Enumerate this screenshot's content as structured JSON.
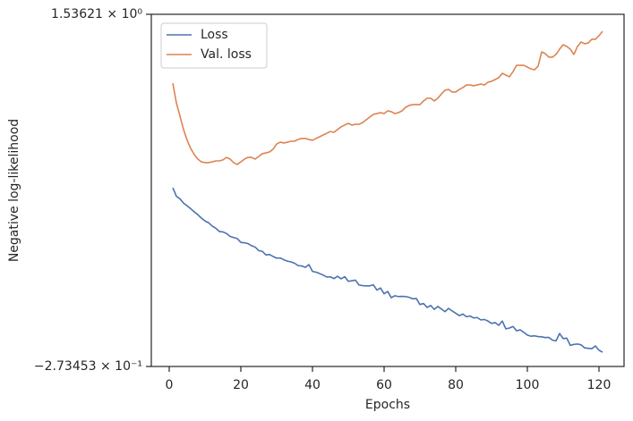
{
  "chart_data": {
    "type": "line",
    "xlabel": "Epochs",
    "ylabel": "Negative log-likelihood",
    "xlim": [
      -5,
      127
    ],
    "xticks": [
      0,
      20,
      40,
      60,
      80,
      100,
      120
    ],
    "ylim": [
      -0.273453,
      1.53621
    ],
    "yticks": [
      {
        "value": -0.273453,
        "label": "−2.73453 × 10⁻¹"
      },
      {
        "value": 1.53621,
        "label": "1.53621 × 10⁰"
      }
    ],
    "grid": false,
    "legend": "upper left",
    "x": [
      1,
      2,
      3,
      4,
      5,
      6,
      7,
      8,
      9,
      10,
      11,
      12,
      13,
      14,
      15,
      16,
      17,
      18,
      19,
      20,
      21,
      22,
      23,
      24,
      25,
      26,
      27,
      28,
      29,
      30,
      31,
      32,
      33,
      34,
      35,
      36,
      37,
      38,
      39,
      40,
      41,
      42,
      43,
      44,
      45,
      46,
      47,
      48,
      49,
      50,
      51,
      52,
      53,
      54,
      55,
      56,
      57,
      58,
      59,
      60,
      61,
      62,
      63,
      64,
      65,
      66,
      67,
      68,
      69,
      70,
      71,
      72,
      73,
      74,
      75,
      76,
      77,
      78,
      79,
      80,
      81,
      82,
      83,
      84,
      85,
      86,
      87,
      88,
      89,
      90,
      91,
      92,
      93,
      94,
      95,
      96,
      97,
      98,
      99,
      100,
      101,
      102,
      103,
      104,
      105,
      106,
      107,
      108,
      109,
      110,
      111,
      112,
      113,
      114,
      115,
      116,
      117,
      118,
      119,
      120,
      121
    ],
    "series": [
      {
        "name": "Loss",
        "color": "#4c72b0",
        "values": [
          0.645,
          0.601,
          0.588,
          0.566,
          0.552,
          0.537,
          0.521,
          0.506,
          0.489,
          0.474,
          0.465,
          0.448,
          0.437,
          0.42,
          0.418,
          0.41,
          0.395,
          0.389,
          0.384,
          0.364,
          0.362,
          0.358,
          0.347,
          0.34,
          0.322,
          0.318,
          0.3,
          0.302,
          0.292,
          0.283,
          0.284,
          0.275,
          0.268,
          0.264,
          0.257,
          0.245,
          0.243,
          0.236,
          0.25,
          0.215,
          0.211,
          0.204,
          0.196,
          0.186,
          0.187,
          0.178,
          0.19,
          0.177,
          0.188,
          0.164,
          0.167,
          0.17,
          0.145,
          0.142,
          0.141,
          0.141,
          0.146,
          0.119,
          0.13,
          0.1,
          0.112,
          0.08,
          0.09,
          0.086,
          0.087,
          0.086,
          0.082,
          0.074,
          0.076,
          0.045,
          0.05,
          0.03,
          0.04,
          0.02,
          0.035,
          0.022,
          0.008,
          0.025,
          0.012,
          0.0,
          -0.012,
          -0.004,
          -0.018,
          -0.014,
          -0.024,
          -0.022,
          -0.034,
          -0.032,
          -0.04,
          -0.052,
          -0.048,
          -0.062,
          -0.04,
          -0.08,
          -0.076,
          -0.068,
          -0.09,
          -0.085,
          -0.098,
          -0.112,
          -0.118,
          -0.116,
          -0.12,
          -0.121,
          -0.125,
          -0.124,
          -0.138,
          -0.142,
          -0.104,
          -0.13,
          -0.128,
          -0.165,
          -0.16,
          -0.158,
          -0.162,
          -0.178,
          -0.18,
          -0.182,
          -0.168,
          -0.19,
          -0.2
        ]
      },
      {
        "name": "Val. loss",
        "color": "#dd8452",
        "values": [
          1.182,
          1.081,
          1.013,
          0.944,
          0.889,
          0.847,
          0.815,
          0.792,
          0.778,
          0.774,
          0.774,
          0.778,
          0.783,
          0.783,
          0.788,
          0.801,
          0.792,
          0.774,
          0.765,
          0.778,
          0.792,
          0.801,
          0.801,
          0.792,
          0.806,
          0.82,
          0.824,
          0.829,
          0.843,
          0.87,
          0.879,
          0.875,
          0.879,
          0.884,
          0.884,
          0.893,
          0.898,
          0.898,
          0.893,
          0.889,
          0.898,
          0.907,
          0.916,
          0.925,
          0.934,
          0.93,
          0.944,
          0.958,
          0.967,
          0.976,
          0.967,
          0.971,
          0.971,
          0.98,
          0.994,
          1.008,
          1.022,
          1.026,
          1.031,
          1.026,
          1.04,
          1.036,
          1.026,
          1.031,
          1.04,
          1.058,
          1.068,
          1.072,
          1.072,
          1.072,
          1.091,
          1.105,
          1.105,
          1.091,
          1.105,
          1.127,
          1.146,
          1.15,
          1.137,
          1.137,
          1.15,
          1.16,
          1.173,
          1.173,
          1.169,
          1.173,
          1.178,
          1.173,
          1.187,
          1.192,
          1.201,
          1.21,
          1.233,
          1.224,
          1.215,
          1.242,
          1.274,
          1.274,
          1.274,
          1.265,
          1.256,
          1.251,
          1.27,
          1.343,
          1.334,
          1.316,
          1.316,
          1.33,
          1.357,
          1.38,
          1.371,
          1.357,
          1.33,
          1.371,
          1.394,
          1.385,
          1.389,
          1.408,
          1.408,
          1.426,
          1.449
        ]
      }
    ]
  }
}
